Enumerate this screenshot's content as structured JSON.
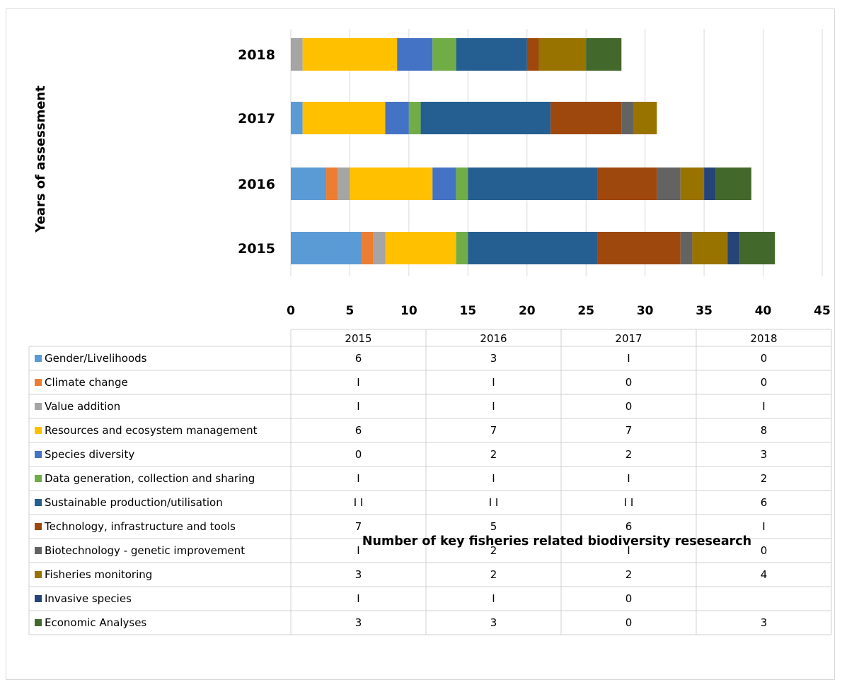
{
  "chart_data": {
    "type": "bar",
    "orientation": "horizontal",
    "stacked": true,
    "categories": [
      "2015",
      "2016",
      "2017",
      "2018"
    ],
    "ylabel": "Years of assessment",
    "xlabel": "Number of key fisheries related biodiversity resesearch",
    "xlim": [
      0,
      45
    ],
    "xticks": [
      "0",
      "5",
      "10",
      "15",
      "20",
      "25",
      "30",
      "35",
      "40",
      "45"
    ],
    "grid": true,
    "legend": "data-table-below",
    "series": [
      {
        "name": "Gender/Livelihoods",
        "color": "#5B9BD5",
        "values": [
          6,
          3,
          1,
          0
        ],
        "labels": [
          "6",
          "3",
          "I",
          "0"
        ]
      },
      {
        "name": "Climate change",
        "color": "#ED7D31",
        "values": [
          1,
          1,
          0,
          0
        ],
        "labels": [
          "I",
          "I",
          "0",
          "0"
        ]
      },
      {
        "name": "Value addition",
        "color": "#A5A5A5",
        "values": [
          1,
          1,
          0,
          1
        ],
        "labels": [
          "I",
          "I",
          "0",
          "I"
        ]
      },
      {
        "name": "Resources and ecosystem management",
        "color": "#FFC000",
        "values": [
          6,
          7,
          7,
          8
        ],
        "labels": [
          "6",
          "7",
          "7",
          "8"
        ]
      },
      {
        "name": "Species diversity",
        "color": "#4472C4",
        "values": [
          0,
          2,
          2,
          3
        ],
        "labels": [
          "0",
          "2",
          "2",
          "3"
        ]
      },
      {
        "name": "Data generation, collection and sharing",
        "color": "#70AD47",
        "values": [
          1,
          1,
          1,
          2
        ],
        "labels": [
          "I",
          "I",
          "I",
          "2"
        ]
      },
      {
        "name": "Sustainable production/utilisation",
        "color": "#255E91",
        "values": [
          11,
          11,
          11,
          6
        ],
        "labels": [
          "I I",
          "I I",
          "I I",
          "6"
        ]
      },
      {
        "name": "Technology, infrastructure and tools",
        "color": "#9E480E",
        "values": [
          7,
          5,
          6,
          1
        ],
        "labels": [
          "7",
          "5",
          "6",
          "I"
        ]
      },
      {
        "name": "Biotechnology - genetic improvement",
        "color": "#636363",
        "values": [
          1,
          2,
          1,
          0
        ],
        "labels": [
          "I",
          "2",
          "I",
          "0"
        ]
      },
      {
        "name": "Fisheries monitoring",
        "color": "#997300",
        "values": [
          3,
          2,
          2,
          4
        ],
        "labels": [
          "3",
          "2",
          "2",
          "4"
        ]
      },
      {
        "name": "Invasive species",
        "color": "#264478",
        "values": [
          1,
          1,
          0,
          null
        ],
        "labels": [
          "I",
          "I",
          "0",
          ""
        ]
      },
      {
        "name": "Economic Analyses",
        "color": "#43682B",
        "values": [
          3,
          3,
          0,
          3
        ],
        "labels": [
          "3",
          "3",
          "0",
          "3"
        ]
      }
    ]
  }
}
